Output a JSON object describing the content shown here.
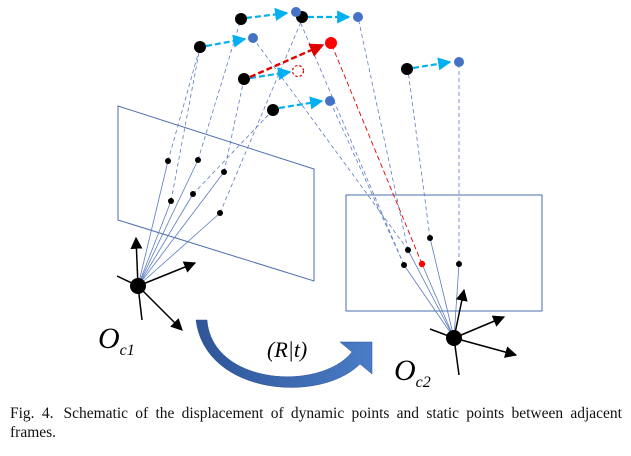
{
  "diagram": {
    "camera1_label": {
      "main": "O",
      "sub": "c1"
    },
    "camera2_label": {
      "main": "O",
      "sub": "c2"
    },
    "transform_label": "(R|t)",
    "colors": {
      "static_point": "#000000",
      "moved_point": "#4472c4",
      "dynamic_point": "#ff0000",
      "displacement_arrow": "#00b0f0",
      "dynamic_arrow": "#e00000",
      "projection_line": "#5b7bc0",
      "image_plane": "#4a6fae",
      "transform_arrow": "#3b64ad"
    }
  },
  "caption": {
    "label": "Fig. 4.",
    "text": "Schematic of the displacement of dynamic points and static points between adjacent frames."
  }
}
